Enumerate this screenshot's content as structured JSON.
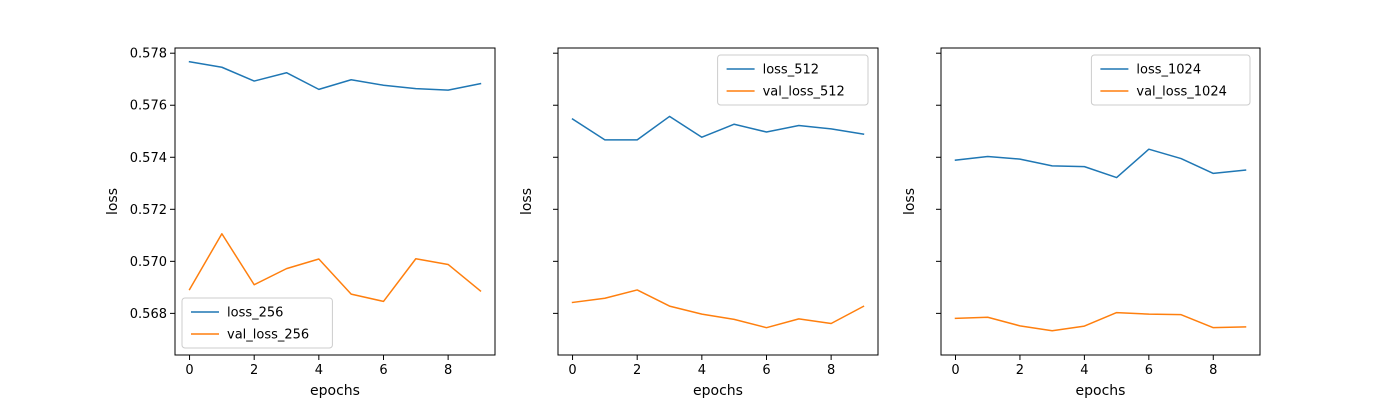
{
  "chart_data": [
    {
      "type": "line",
      "title": "",
      "xlabel": "epochs",
      "ylabel": "loss",
      "x": [
        0,
        1,
        2,
        3,
        4,
        5,
        6,
        7,
        8,
        9
      ],
      "xticks": [
        0,
        2,
        4,
        6,
        8
      ],
      "show_yticklabels": true,
      "legend_loc": "lower-left",
      "series": [
        {
          "name": "loss_256",
          "color": "#1f77b4",
          "values": [
            0.57767,
            0.57746,
            0.57693,
            0.57725,
            0.57661,
            0.57698,
            0.57677,
            0.57664,
            0.57658,
            0.57683
          ]
        },
        {
          "name": "val_loss_256",
          "color": "#ff7f0e",
          "values": [
            0.56892,
            0.57106,
            0.5691,
            0.56972,
            0.57009,
            0.56874,
            0.56846,
            0.5701,
            0.56988,
            0.56886
          ]
        }
      ]
    },
    {
      "type": "line",
      "title": "",
      "xlabel": "epochs",
      "ylabel": "loss",
      "x": [
        0,
        1,
        2,
        3,
        4,
        5,
        6,
        7,
        8,
        9
      ],
      "xticks": [
        0,
        2,
        4,
        6,
        8
      ],
      "show_yticklabels": false,
      "legend_loc": "upper-right",
      "series": [
        {
          "name": "loss_512",
          "color": "#1f77b4",
          "values": [
            0.57547,
            0.57467,
            0.57467,
            0.57557,
            0.57477,
            0.57527,
            0.57497,
            0.57522,
            0.57509,
            0.57489
          ]
        },
        {
          "name": "val_loss_512",
          "color": "#ff7f0e",
          "values": [
            0.56842,
            0.56858,
            0.5689,
            0.56828,
            0.56797,
            0.56777,
            0.56745,
            0.56779,
            0.56761,
            0.56827
          ]
        }
      ]
    },
    {
      "type": "line",
      "title": "",
      "xlabel": "epochs",
      "ylabel": "loss",
      "x": [
        0,
        1,
        2,
        3,
        4,
        5,
        6,
        7,
        8,
        9
      ],
      "xticks": [
        0,
        2,
        4,
        6,
        8
      ],
      "show_yticklabels": false,
      "legend_loc": "upper-right",
      "series": [
        {
          "name": "loss_1024",
          "color": "#1f77b4",
          "values": [
            0.57389,
            0.57403,
            0.57393,
            0.57367,
            0.57364,
            0.57322,
            0.57431,
            0.57395,
            0.57338,
            0.57351
          ]
        },
        {
          "name": "val_loss_1024",
          "color": "#ff7f0e",
          "values": [
            0.56781,
            0.56785,
            0.56752,
            0.56733,
            0.56751,
            0.56803,
            0.56797,
            0.56795,
            0.56745,
            0.56748
          ]
        }
      ]
    }
  ],
  "shared_y": {
    "ylim": [
      0.5664,
      0.5782
    ],
    "yticks": [
      0.568,
      0.57,
      0.572,
      0.574,
      0.576,
      0.578
    ],
    "ytick_labels": [
      "0.568",
      "0.570",
      "0.572",
      "0.574",
      "0.576",
      "0.578"
    ]
  },
  "shared_x": {
    "xlim": [
      -0.45,
      9.45
    ]
  }
}
